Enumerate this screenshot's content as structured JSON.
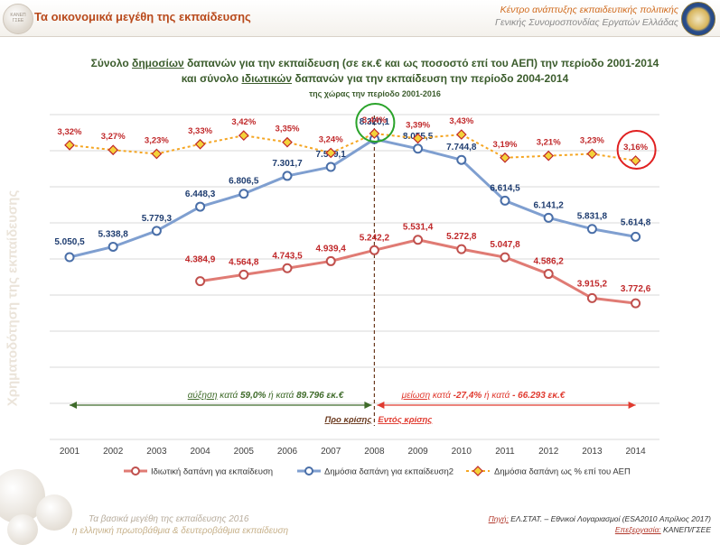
{
  "header": {
    "title": "Τα οικονομικά μεγέθη της εκπαίδευσης",
    "org_line1": "Κέντρο ανάπτυξης εκπαιδευτικής πολιτικής",
    "org_line2": "Γενικής Συνομοσπονδίας Εργατών Ελλάδας"
  },
  "side_text": "Χρηματοδότηση της εκπαίδευσης",
  "footer": {
    "left_line1": "Τα βασικά μεγέθη της εκπαίδευσης 2016",
    "left_line2": "η ελληνική πρωτοβάθμια & δευτεροβάθμια εκπαίδευση",
    "source_label": "Πηγή:",
    "source_text": "ΕΛ.ΣΤΑΤ. – Εθνικοί Λογαριασμοί (ESA2010 Απρίλιος 2017)",
    "processing_label": "Επεξεργασία:",
    "processing_text": "ΚΑΝΕΠ/ΓΣΕΕ"
  },
  "chart_data": {
    "type": "line",
    "title_line1_pre": "Σύνολο ",
    "title_line1_u": "δημοσίων",
    "title_line1_post": " δαπανών για την εκπαίδευση (σε εκ.€ και ως ποσοστό επί του ΑΕΠ) την περίοδο 2001-2014",
    "title_line2_pre": "και σύνολο ",
    "title_line2_u": "ιδιωτικών",
    "title_line2_post": " δαπανών για την εκπαίδευση την περίοδο 2004-2014",
    "subtitle": "της χώρας την περίοδο 2001-2016",
    "x": [
      "2001",
      "2002",
      "2003",
      "2004",
      "2005",
      "2006",
      "2007",
      "2008",
      "2009",
      "2010",
      "2011",
      "2012",
      "2013",
      "2014"
    ],
    "series": [
      {
        "name": "Ιδιωτική δαπάνη για εκπαίδευση",
        "color": "#e07b74",
        "values": [
          null,
          null,
          null,
          4384.9,
          4564.8,
          4743.5,
          4939.4,
          5242.2,
          5531.4,
          5272.8,
          5047.8,
          4586.2,
          3915.2,
          3772.6
        ],
        "labels": [
          "",
          "",
          "",
          "4.384,9",
          "4.564,8",
          "4.743,5",
          "4.939,4",
          "5.242,2",
          "5.531,4",
          "5.272,8",
          "5.047,8",
          "4.586,2",
          "3.915,2",
          "3.772,6"
        ]
      },
      {
        "name": "Δημόσια δαπάνη για εκπαίδευση2",
        "color": "#7f9fd0",
        "values": [
          5050.5,
          5338.8,
          5779.3,
          6448.3,
          6806.5,
          7301.7,
          7549.1,
          8320.1,
          8055.5,
          7744.8,
          6614.5,
          6141.2,
          5831.8,
          5614.8
        ],
        "labels": [
          "5.050,5",
          "5.338,8",
          "5.779,3",
          "6.448,3",
          "6.806,5",
          "7.301,7",
          "7.549,1",
          "8.320,1",
          "8.055,5",
          "7.744,8",
          "6.614,5",
          "6.141,2",
          "5.831,8",
          "5.614,8"
        ]
      },
      {
        "name": "Δημόσια δαπάνη ως % επί του ΑΕΠ",
        "color": "#f5a623",
        "marker_color": "#f4d23a",
        "values": [
          3.32,
          3.27,
          3.23,
          3.33,
          3.42,
          3.35,
          3.24,
          3.44,
          3.39,
          3.43,
          3.19,
          3.21,
          3.23,
          3.16
        ],
        "labels": [
          "3,32%",
          "3,27%",
          "3,23%",
          "3,33%",
          "3,42%",
          "3,35%",
          "3,24%",
          "3,44%",
          "3,39%",
          "3,43%",
          "3,19%",
          "3,21%",
          "3,23%",
          "3,16%"
        ]
      }
    ],
    "annotations": {
      "increase_word": "αύξηση",
      "increase_mid1": " κατά ",
      "increase_pct": "59,0%",
      "increase_mid2": "  ή κατά  ",
      "increase_amount": "89.796 εκ.€",
      "decrease_word": "μείωση",
      "decrease_mid1": " κατά ",
      "decrease_pct": "-27,4%",
      "decrease_mid2": "  ή κατά  ",
      "decrease_amount": "- 66.293 εκ.€",
      "pre_crisis": "Προ κρίσης",
      "in_crisis": "Εντός κρίσης"
    },
    "grid": true,
    "legend_position": "bottom"
  }
}
